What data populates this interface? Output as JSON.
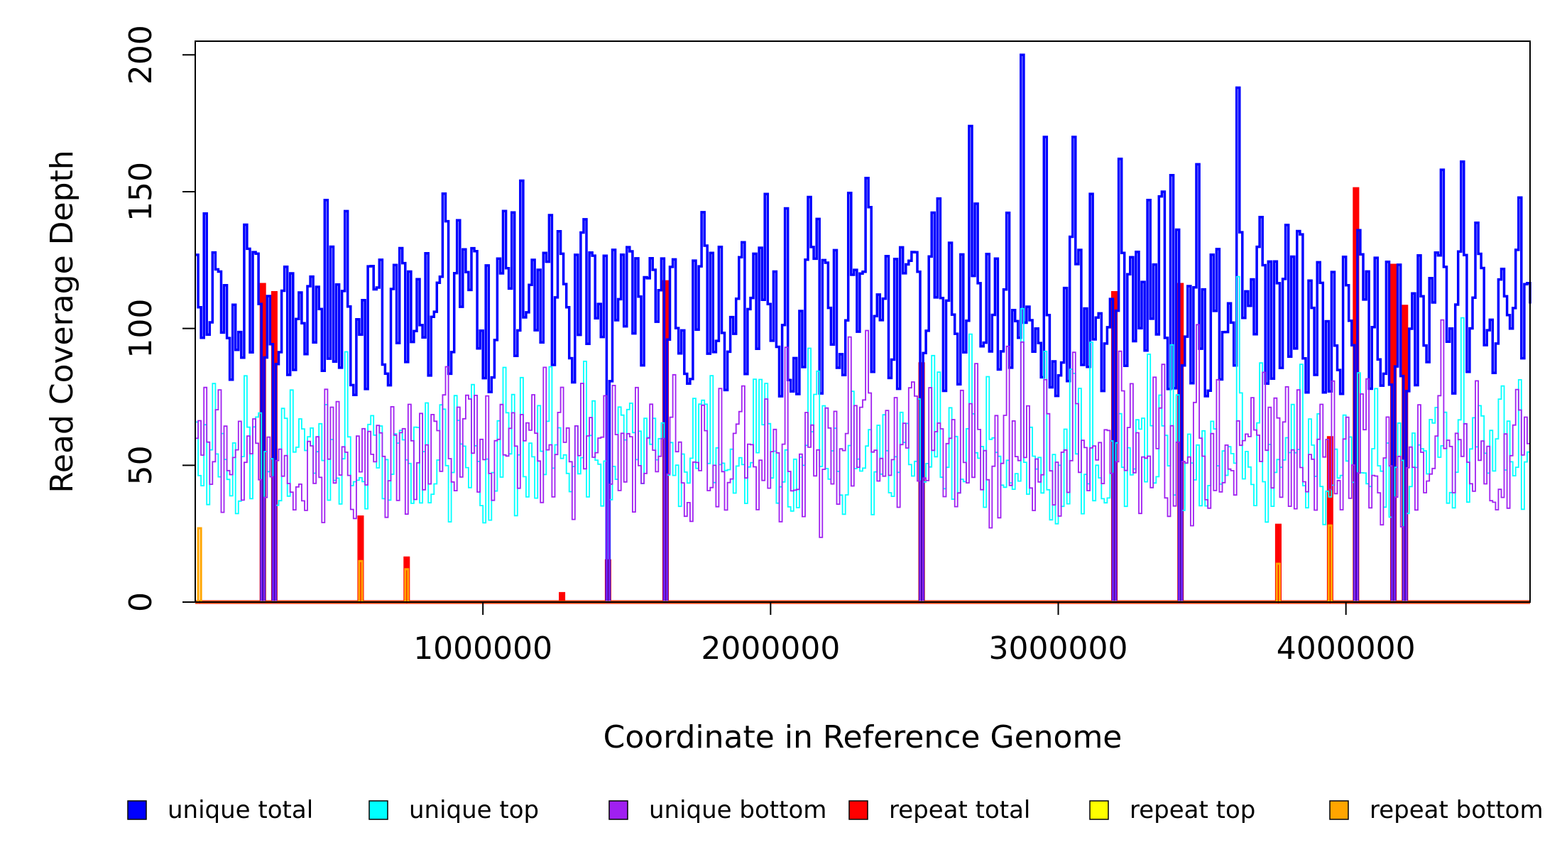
{
  "chart_data": {
    "type": "line",
    "title": "",
    "xlabel": "Coordinate in Reference Genome",
    "ylabel": "Read Coverage Depth",
    "xlim": [
      0,
      4640000
    ],
    "ylim": [
      0,
      205
    ],
    "x_ticks": [
      1000000,
      2000000,
      3000000,
      4000000
    ],
    "x_tick_labels": [
      "1000000",
      "2000000",
      "3000000",
      "4000000"
    ],
    "y_ticks": [
      0,
      50,
      100,
      150,
      200
    ],
    "y_tick_labels": [
      "0",
      "50",
      "100",
      "150",
      "200"
    ],
    "legend_position": "bottom",
    "bin_size": 10000,
    "series": [
      {
        "name": "unique total",
        "color": "#0000ff",
        "typical_range": [
          60,
          200
        ]
      },
      {
        "name": "unique top",
        "color": "#00ffff",
        "typical_range": [
          10,
          95
        ]
      },
      {
        "name": "unique bottom",
        "color": "#a020f0",
        "typical_range": [
          15,
          110
        ]
      },
      {
        "name": "repeat total",
        "color": "#ff0000"
      },
      {
        "name": "repeat top",
        "color": "#ffff00"
      },
      {
        "name": "repeat bottom",
        "color": "#ffa500"
      }
    ],
    "notable_values": {
      "unique_total_peaks": [
        {
          "x": 2870000,
          "y": 200
        },
        {
          "x": 3620000,
          "y": 188
        },
        {
          "x": 2690000,
          "y": 174
        },
        {
          "x": 2950000,
          "y": 170
        },
        {
          "x": 3050000,
          "y": 170
        },
        {
          "x": 4400000,
          "y": 161
        },
        {
          "x": 3210000,
          "y": 162
        },
        {
          "x": 4330000,
          "y": 158
        },
        {
          "x": 3480000,
          "y": 160
        },
        {
          "x": 3390000,
          "y": 156
        },
        {
          "x": 2330000,
          "y": 155
        },
        {
          "x": 1130000,
          "y": 154
        },
        {
          "x": 30000,
          "y": 142
        }
      ],
      "unique_total_dropouts_to_zero": [
        225000,
        265000,
        1425000,
        1625000,
        2520000,
        3185000,
        3420000,
        4030000,
        4160000,
        4200000
      ],
      "repeat_total_spikes": [
        {
          "x": 225000,
          "y": 116
        },
        {
          "x": 265000,
          "y": 113
        },
        {
          "x": 570000,
          "y": 31
        },
        {
          "x": 725000,
          "y": 16
        },
        {
          "x": 1265000,
          "y": 3
        },
        {
          "x": 1425000,
          "y": 15
        },
        {
          "x": 1625000,
          "y": 117
        },
        {
          "x": 2520000,
          "y": 87
        },
        {
          "x": 3185000,
          "y": 113
        },
        {
          "x": 3420000,
          "y": 116
        },
        {
          "x": 3760000,
          "y": 28
        },
        {
          "x": 3940000,
          "y": 60
        },
        {
          "x": 4030000,
          "y": 151
        },
        {
          "x": 4160000,
          "y": 123
        },
        {
          "x": 4200000,
          "y": 108
        }
      ],
      "repeat_bottom_spikes": [
        {
          "x": 10000,
          "y": 27
        },
        {
          "x": 570000,
          "y": 15
        },
        {
          "x": 725000,
          "y": 12
        },
        {
          "x": 3760000,
          "y": 14
        },
        {
          "x": 3940000,
          "y": 28
        }
      ]
    }
  },
  "legend": {
    "items": [
      {
        "label": "unique total",
        "color": "#0000ff"
      },
      {
        "label": "unique top",
        "color": "#00ffff"
      },
      {
        "label": "unique bottom",
        "color": "#a020f0"
      },
      {
        "label": "repeat total",
        "color": "#ff0000"
      },
      {
        "label": "repeat top",
        "color": "#ffff00"
      },
      {
        "label": "repeat bottom",
        "color": "#ffa500"
      }
    ]
  }
}
